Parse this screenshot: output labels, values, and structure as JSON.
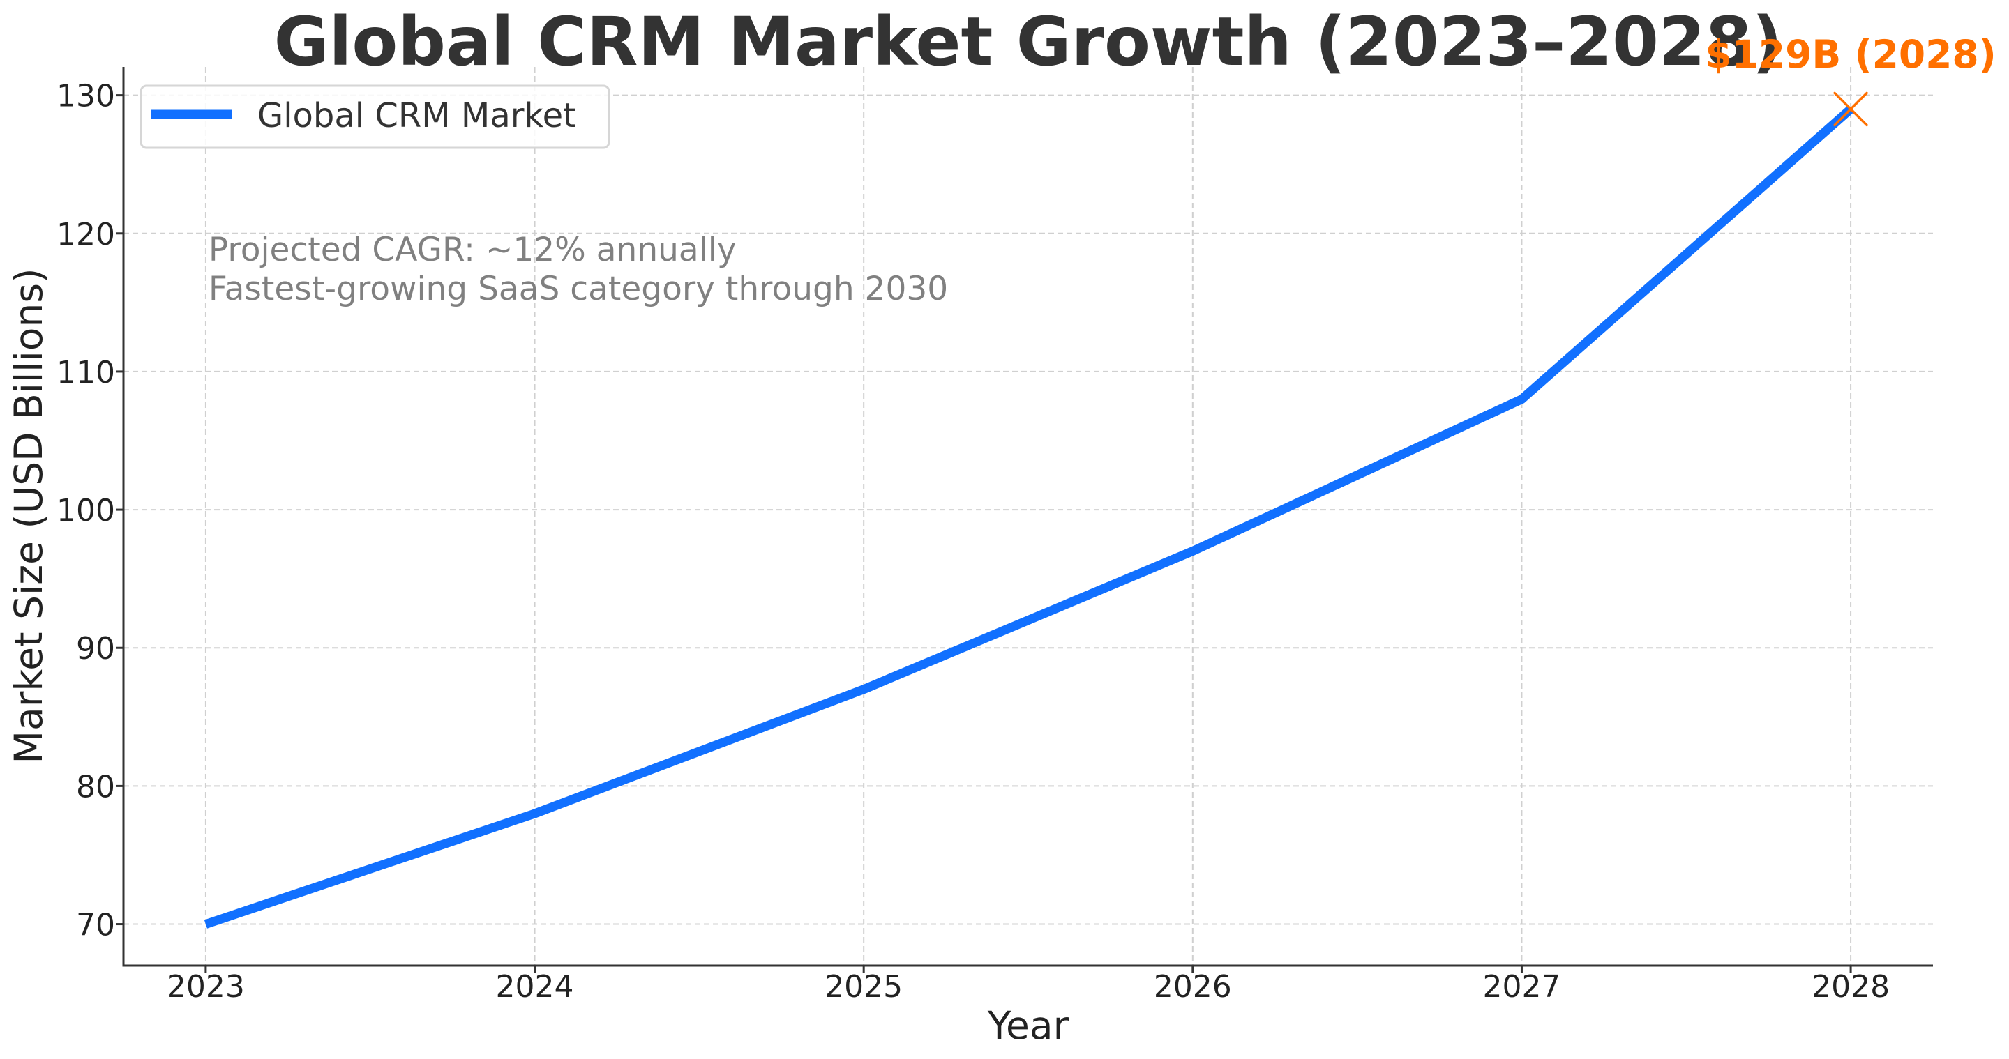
{
  "chart_data": {
    "type": "line",
    "title": "Global CRM Market Growth (2023–2028)",
    "xlabel": "Year",
    "ylabel": "Market Size (USD Billions)",
    "x": [
      2023,
      2024,
      2025,
      2026,
      2027,
      2028
    ],
    "xtick_labels": [
      "2023",
      "2024",
      "2025",
      "2026",
      "2027",
      "2028"
    ],
    "yticks": [
      70,
      80,
      90,
      100,
      110,
      120,
      130
    ],
    "ytick_labels": [
      "70",
      "80",
      "90",
      "100",
      "110",
      "120",
      "130"
    ],
    "xlim": [
      2022.75,
      2028.25
    ],
    "ylim": [
      67.0,
      132.05
    ],
    "grid": true,
    "series": [
      {
        "name": "Global CRM Market",
        "values": [
          70,
          78,
          87,
          97,
          108,
          129
        ],
        "color": "#1170ff"
      }
    ],
    "legend": {
      "placement": "top-left",
      "entries": [
        "Global CRM Market"
      ]
    },
    "annotations": [
      {
        "type": "marker",
        "marker": "x",
        "x": 2028,
        "y": 129,
        "color": "#ff7000",
        "text": "$129B (2028)"
      },
      {
        "type": "text-block",
        "lines": [
          "Projected CAGR: ~12% annually",
          "Fastest-growing SaaS category through 2030"
        ],
        "color": "#808080",
        "anchor_x": 2023,
        "anchor_y": 120
      }
    ]
  }
}
